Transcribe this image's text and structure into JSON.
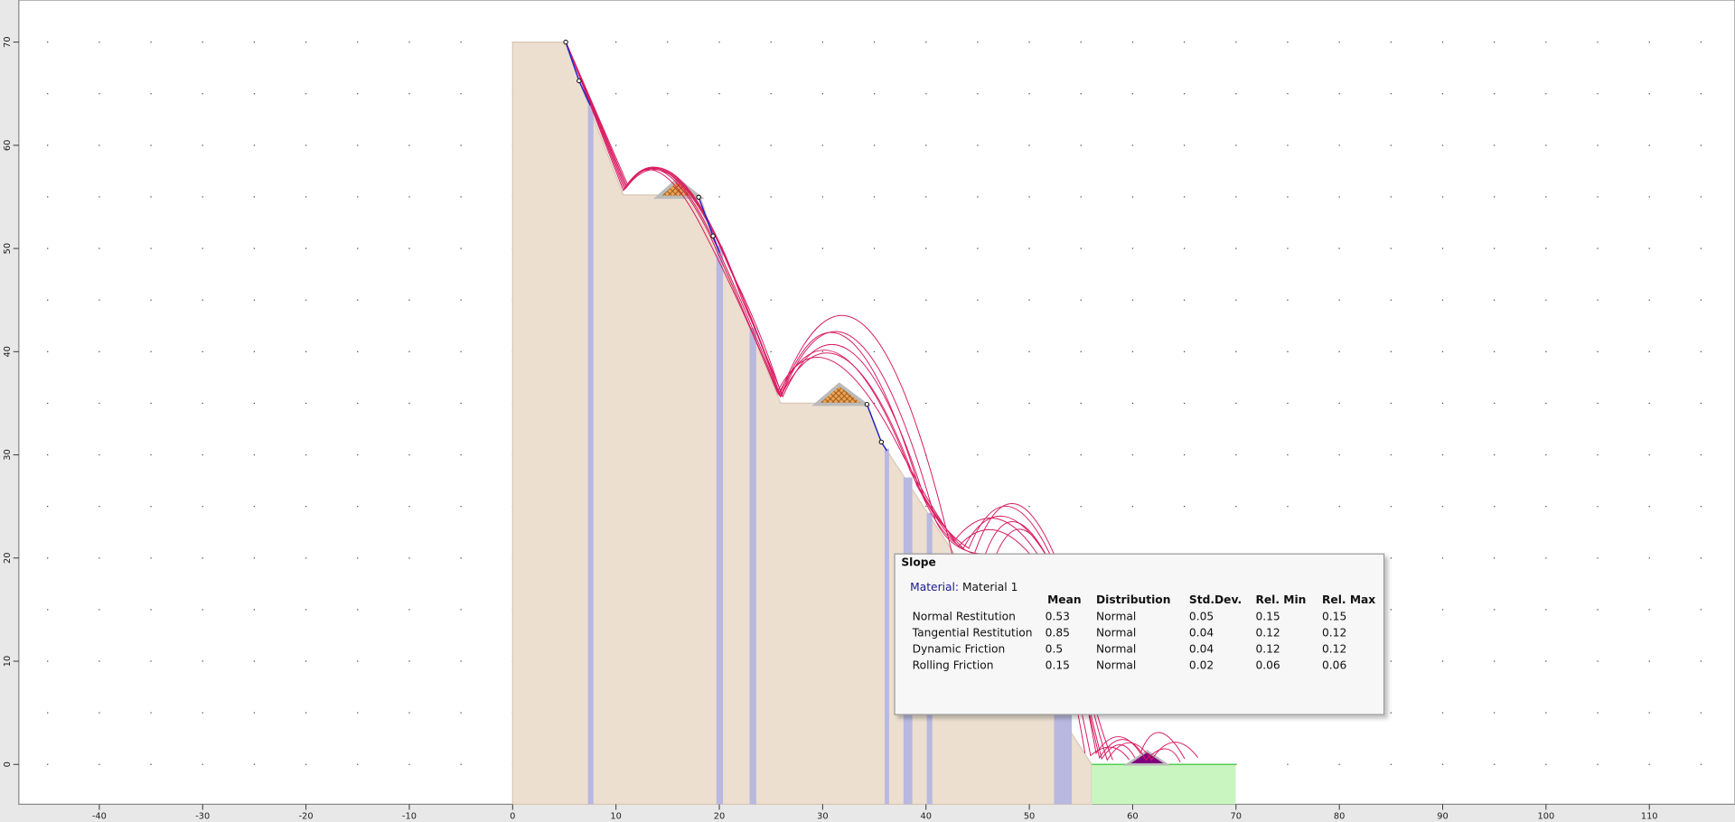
{
  "x_axis": {
    "ticks": [
      -40,
      -30,
      -20,
      -10,
      0,
      10,
      20,
      30,
      40,
      50,
      60,
      70,
      80,
      90,
      100,
      110
    ]
  },
  "y_axis": {
    "ticks": [
      0,
      10,
      20,
      30,
      40,
      50,
      60,
      70
    ]
  },
  "tooltip": {
    "title": "Slope",
    "material_label": "Material:",
    "material_value": "Material 1",
    "columns": [
      "Mean",
      "Distribution",
      "Std.Dev.",
      "Rel. Min",
      "Rel. Max"
    ],
    "rows": [
      {
        "name": "Normal Restitution",
        "cells": [
          0.53,
          "Normal",
          0.05,
          0.15,
          0.15
        ]
      },
      {
        "name": "Tangential Restitution",
        "cells": [
          0.85,
          "Normal",
          0.04,
          0.12,
          0.12
        ]
      },
      {
        "name": "Dynamic Friction",
        "cells": [
          0.5,
          "Normal",
          0.04,
          0.12,
          0.12
        ]
      },
      {
        "name": "Rolling Friction",
        "cells": [
          0.15,
          "Normal",
          0.02,
          0.06,
          0.06
        ]
      }
    ]
  }
}
